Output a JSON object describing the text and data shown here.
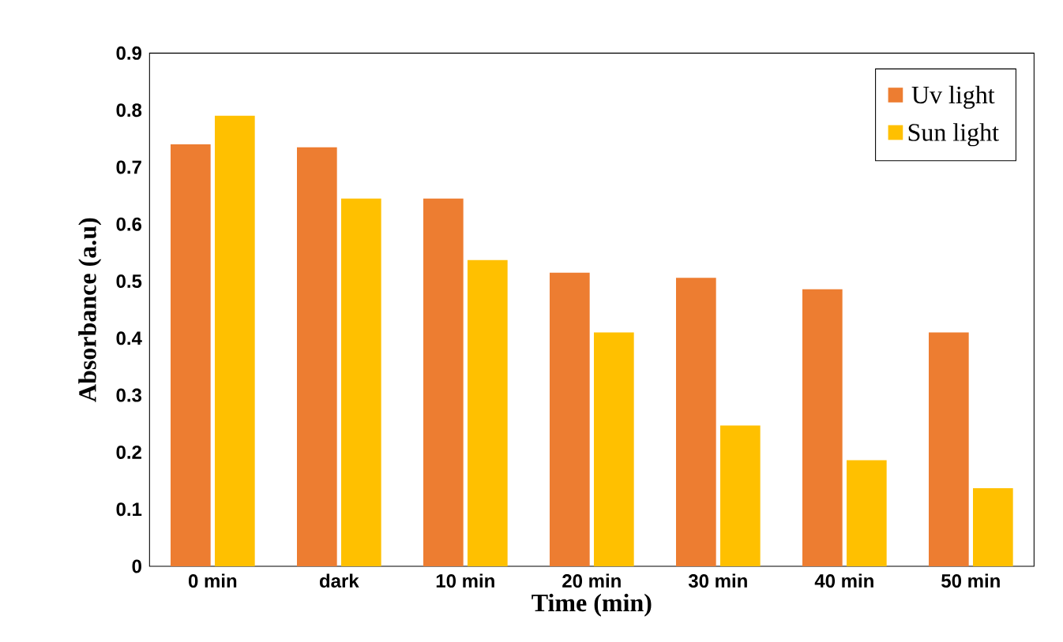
{
  "chart_data": {
    "type": "bar",
    "xlabel": "Time (min)",
    "ylabel": "Absorbance (a.u)",
    "categories": [
      "0 min",
      "dark",
      "10 min",
      "20 min",
      "30 min",
      "40 min",
      "50 min"
    ],
    "series": [
      {
        "name": "Uv light",
        "color": "#ed7d31",
        "values": [
          0.74,
          0.735,
          0.645,
          0.515,
          0.506,
          0.486,
          0.41
        ]
      },
      {
        "name": "Sun light",
        "color": "#ffc000",
        "values": [
          0.79,
          0.645,
          0.537,
          0.41,
          0.247,
          0.186,
          0.137
        ]
      }
    ],
    "ylim": [
      0,
      0.9
    ],
    "yticks": [
      0,
      0.1,
      0.2,
      0.3,
      0.4,
      0.5,
      0.6,
      0.7,
      0.8,
      0.9
    ],
    "grid": false,
    "legend": "top right"
  }
}
